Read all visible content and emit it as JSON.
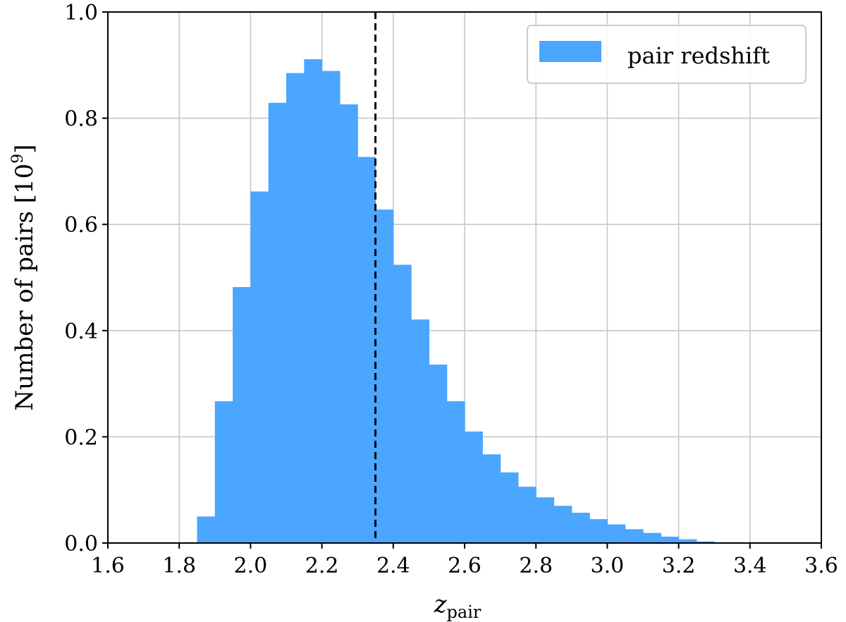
{
  "chart_data": {
    "type": "bar",
    "subtype": "histogram",
    "bin_edges": [
      1.85,
      1.9,
      1.95,
      2.0,
      2.05,
      2.1,
      2.15,
      2.2,
      2.25,
      2.3,
      2.35,
      2.4,
      2.45,
      2.5,
      2.55,
      2.6,
      2.65,
      2.7,
      2.75,
      2.8,
      2.85,
      2.9,
      2.95,
      3.0,
      3.05,
      3.1,
      3.15,
      3.2,
      3.25,
      3.3
    ],
    "values": [
      0.05,
      0.267,
      0.482,
      0.662,
      0.829,
      0.885,
      0.911,
      0.889,
      0.826,
      0.727,
      0.628,
      0.524,
      0.421,
      0.336,
      0.267,
      0.21,
      0.167,
      0.133,
      0.106,
      0.086,
      0.07,
      0.057,
      0.045,
      0.035,
      0.026,
      0.019,
      0.012,
      0.007,
      0.003
    ],
    "series": [
      {
        "name": "pair redshift",
        "color": "#4aa6ff"
      }
    ],
    "xlim": [
      1.6,
      3.6
    ],
    "ylim": [
      0.0,
      1.0
    ],
    "xticks": [
      "1.6",
      "1.8",
      "2.0",
      "2.2",
      "2.4",
      "2.6",
      "2.8",
      "3.0",
      "3.2",
      "3.4",
      "3.6"
    ],
    "yticks": [
      "0.0",
      "0.2",
      "0.4",
      "0.6",
      "0.8",
      "1.0"
    ],
    "xlabel": {
      "main": "z",
      "sub": "pair"
    },
    "ylabel": {
      "main": "Number of pairs [10",
      "sup": "9",
      "end": "]"
    },
    "reference_line": {
      "x": 2.35,
      "style": "dashed",
      "color": "#000000"
    },
    "legend": {
      "position": "top-right",
      "label": "pair redshift"
    },
    "grid": true
  }
}
